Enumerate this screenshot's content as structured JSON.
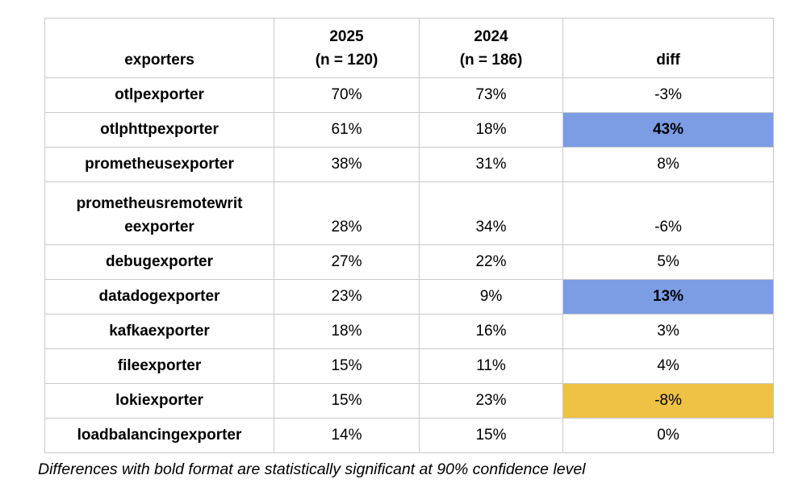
{
  "colors": {
    "highlight_blue": "#7c9ce4",
    "highlight_orange": "#efc144",
    "border": "#c9c9c9"
  },
  "table": {
    "columns": [
      {
        "label": "exporters"
      },
      {
        "label": "2025\n(n = 120)"
      },
      {
        "label": "2024\n(n = 186)"
      },
      {
        "label": "diff"
      }
    ],
    "rows": [
      {
        "exporter": "otlpexporter",
        "y2025": "70%",
        "y2024": "73%",
        "diff": "-3%",
        "diff_highlight": "none",
        "diff_bold": false
      },
      {
        "exporter": "otlphttpexporter",
        "y2025": "61%",
        "y2024": "18%",
        "diff": "43%",
        "diff_highlight": "blue",
        "diff_bold": true
      },
      {
        "exporter": "prometheusexporter",
        "y2025": "38%",
        "y2024": "31%",
        "diff": "8%",
        "diff_highlight": "none",
        "diff_bold": false
      },
      {
        "exporter": "prometheusremotewrit\neexporter",
        "y2025": "28%",
        "y2024": "34%",
        "diff": "-6%",
        "diff_highlight": "none",
        "diff_bold": false
      },
      {
        "exporter": "debugexporter",
        "y2025": "27%",
        "y2024": "22%",
        "diff": "5%",
        "diff_highlight": "none",
        "diff_bold": false
      },
      {
        "exporter": "datadogexporter",
        "y2025": "23%",
        "y2024": "9%",
        "diff": "13%",
        "diff_highlight": "blue",
        "diff_bold": true
      },
      {
        "exporter": "kafkaexporter",
        "y2025": "18%",
        "y2024": "16%",
        "diff": "3%",
        "diff_highlight": "none",
        "diff_bold": false
      },
      {
        "exporter": "fileexporter",
        "y2025": "15%",
        "y2024": "11%",
        "diff": "4%",
        "diff_highlight": "none",
        "diff_bold": false
      },
      {
        "exporter": "lokiexporter",
        "y2025": "15%",
        "y2024": "23%",
        "diff": "-8%",
        "diff_highlight": "orange",
        "diff_bold": false
      },
      {
        "exporter": "loadbalancingexporter",
        "y2025": "14%",
        "y2024": "15%",
        "diff": "0%",
        "diff_highlight": "none",
        "diff_bold": false
      }
    ]
  },
  "footnote": "Differences with bold format are statistically significant at 90% confidence level",
  "chart_data": {
    "type": "table",
    "title": "",
    "columns": [
      "exporters",
      "2025 (n = 120)",
      "2024 (n = 186)",
      "diff"
    ],
    "categories": [
      "otlpexporter",
      "otlphttpexporter",
      "prometheusexporter",
      "prometheusremotewriteexporter",
      "debugexporter",
      "datadogexporter",
      "kafkaexporter",
      "fileexporter",
      "lokiexporter",
      "loadbalancingexporter"
    ],
    "series": [
      {
        "name": "2025 (n = 120)",
        "unit": "%",
        "values": [
          70,
          61,
          38,
          28,
          27,
          23,
          18,
          15,
          15,
          14
        ]
      },
      {
        "name": "2024 (n = 186)",
        "unit": "%",
        "values": [
          73,
          18,
          31,
          34,
          22,
          9,
          16,
          11,
          23,
          15
        ]
      },
      {
        "name": "diff",
        "unit": "%",
        "values": [
          -3,
          43,
          8,
          -6,
          5,
          13,
          3,
          4,
          -8,
          0
        ]
      }
    ],
    "sample_sizes": {
      "2025": 120,
      "2024": 186
    },
    "highlighted_cells": [
      {
        "row": "otlphttpexporter",
        "column": "diff",
        "value": 43,
        "highlight": "blue",
        "bold": true
      },
      {
        "row": "datadogexporter",
        "column": "diff",
        "value": 13,
        "highlight": "blue",
        "bold": true
      },
      {
        "row": "lokiexporter",
        "column": "diff",
        "value": -8,
        "highlight": "orange",
        "bold": false
      }
    ],
    "note": "Differences with bold format are statistically significant at 90% confidence level"
  }
}
